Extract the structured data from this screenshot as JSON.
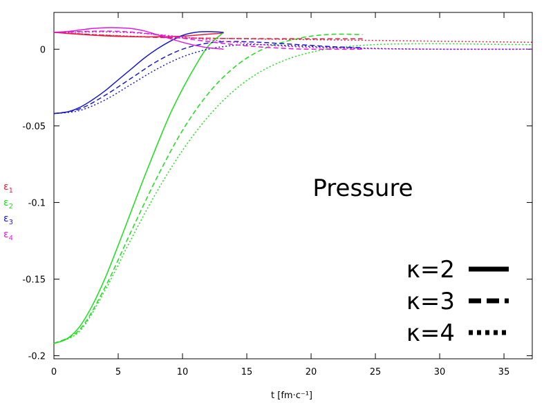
{
  "chart_data": {
    "type": "line",
    "title": "Pressure",
    "xlabel": "t [fm·c⁻¹]",
    "ylabel_entries": [
      {
        "text": "ε",
        "sub": "1",
        "color": "#e8183c"
      },
      {
        "text": "ε",
        "sub": "2",
        "color": "#18e018"
      },
      {
        "text": "ε",
        "sub": "3",
        "color": "#1818d0"
      },
      {
        "text": "ε",
        "sub": "4",
        "color": "#e018e0"
      }
    ],
    "xlim": [
      0,
      37.2
    ],
    "ylim": [
      -0.202,
      0.024
    ],
    "xticks": [
      0,
      5,
      10,
      15,
      20,
      25,
      30,
      35
    ],
    "yticks": [
      0,
      -0.05,
      -0.1,
      -0.15,
      -0.2
    ],
    "ytick_labels": [
      "0",
      "-0.05",
      "-0.1",
      "-0.15",
      "-0.2"
    ],
    "grid": false,
    "legend": {
      "position": "bottom-right",
      "entries": [
        {
          "label": "κ=2",
          "style": "solid"
        },
        {
          "label": "κ=3",
          "style": "dashed"
        },
        {
          "label": "κ=4",
          "style": "dotted"
        }
      ]
    },
    "series": [
      {
        "component": "ε1",
        "kappa": 2,
        "style": "solid",
        "color": "#e8183c",
        "x": [
          0,
          2,
          4,
          6,
          8,
          10,
          12,
          13.2
        ],
        "y": [
          0.011,
          0.0097,
          0.0087,
          0.0082,
          0.0081,
          0.0085,
          0.0098,
          0.0105
        ]
      },
      {
        "component": "ε1",
        "kappa": 3,
        "style": "dashed",
        "color": "#e8183c",
        "x": [
          0,
          3,
          6,
          9,
          12,
          16,
          20,
          24
        ],
        "y": [
          0.011,
          0.0095,
          0.0083,
          0.0075,
          0.0071,
          0.0069,
          0.0068,
          0.0068
        ]
      },
      {
        "component": "ε1",
        "kappa": 4,
        "style": "dotted",
        "color": "#e8183c",
        "x": [
          0,
          3,
          6,
          10,
          15,
          20,
          25,
          30,
          37.2
        ],
        "y": [
          0.011,
          0.0096,
          0.0085,
          0.0075,
          0.0068,
          0.0062,
          0.0057,
          0.0052,
          0.0045
        ]
      },
      {
        "component": "ε2",
        "kappa": 2,
        "style": "solid",
        "color": "#18e018",
        "x": [
          0,
          1,
          2,
          3,
          4,
          5,
          6,
          7,
          8,
          9,
          10,
          11,
          12,
          13.2
        ],
        "y": [
          -0.192,
          -0.189,
          -0.181,
          -0.167,
          -0.149,
          -0.128,
          -0.106,
          -0.084,
          -0.063,
          -0.043,
          -0.026,
          -0.011,
          0.002,
          0.011
        ]
      },
      {
        "component": "ε2",
        "kappa": 3,
        "style": "dashed",
        "color": "#18e018",
        "x": [
          0,
          2,
          4,
          6,
          8,
          10,
          12,
          14,
          16,
          18,
          20,
          22,
          24
        ],
        "y": [
          -0.192,
          -0.183,
          -0.155,
          -0.119,
          -0.084,
          -0.053,
          -0.029,
          -0.012,
          -0.001,
          0.005,
          0.0085,
          0.0098,
          0.0095
        ]
      },
      {
        "component": "ε2",
        "kappa": 4,
        "style": "dotted",
        "color": "#18e018",
        "x": [
          0,
          2,
          4,
          6,
          8,
          10,
          12,
          14,
          16,
          18,
          20,
          22,
          25,
          28,
          31,
          34,
          37.2
        ],
        "y": [
          -0.192,
          -0.184,
          -0.157,
          -0.124,
          -0.093,
          -0.066,
          -0.044,
          -0.027,
          -0.015,
          -0.007,
          -0.002,
          0.001,
          0.003,
          0.0035,
          0.0035,
          0.0032,
          0.003
        ]
      },
      {
        "component": "ε3",
        "kappa": 2,
        "style": "solid",
        "color": "#1818d0",
        "x": [
          0,
          1,
          2,
          3,
          4,
          5,
          6,
          7,
          8,
          9,
          10,
          11,
          12,
          13.2
        ],
        "y": [
          -0.042,
          -0.041,
          -0.038,
          -0.033,
          -0.027,
          -0.02,
          -0.013,
          -0.006,
          0.0,
          0.005,
          0.009,
          0.011,
          0.0115,
          0.011
        ]
      },
      {
        "component": "ε3",
        "kappa": 3,
        "style": "dashed",
        "color": "#1818d0",
        "x": [
          0,
          2,
          4,
          6,
          8,
          10,
          12,
          14,
          16,
          18,
          20,
          22,
          24
        ],
        "y": [
          -0.042,
          -0.039,
          -0.03,
          -0.019,
          -0.008,
          0.0,
          0.004,
          0.005,
          0.0045,
          0.0035,
          0.0025,
          0.0015,
          0.001
        ]
      },
      {
        "component": "ε3",
        "kappa": 4,
        "style": "dotted",
        "color": "#1818d0",
        "x": [
          0,
          2,
          4,
          6,
          8,
          10,
          12,
          14,
          16,
          18,
          21,
          25,
          30,
          37.2
        ],
        "y": [
          -0.042,
          -0.04,
          -0.033,
          -0.023,
          -0.013,
          -0.005,
          0.0,
          0.0025,
          0.003,
          0.0025,
          0.0015,
          0.0005,
          0.0,
          0.0
        ]
      },
      {
        "component": "ε4",
        "kappa": 2,
        "style": "solid",
        "color": "#e018e0",
        "x": [
          0,
          1,
          2,
          3,
          4,
          5,
          6,
          7,
          8,
          9,
          10,
          11,
          12,
          13.2
        ],
        "y": [
          0.011,
          0.0115,
          0.0125,
          0.0135,
          0.014,
          0.014,
          0.0135,
          0.012,
          0.0095,
          0.007,
          0.0045,
          0.0025,
          0.001,
          0.0
        ]
      },
      {
        "component": "ε4",
        "kappa": 3,
        "style": "dashed",
        "color": "#e018e0",
        "x": [
          0,
          2,
          4,
          6,
          8,
          10,
          12,
          14,
          16,
          18,
          20,
          24
        ],
        "y": [
          0.011,
          0.0115,
          0.0118,
          0.0112,
          0.0095,
          0.0072,
          0.005,
          0.003,
          0.0015,
          0.0005,
          0.0,
          0.0
        ]
      },
      {
        "component": "ε4",
        "kappa": 4,
        "style": "dotted",
        "color": "#e018e0",
        "x": [
          0,
          2,
          4,
          6,
          8,
          10,
          12,
          14,
          17,
          20,
          25,
          30,
          37.2
        ],
        "y": [
          0.011,
          0.0112,
          0.0113,
          0.0108,
          0.0096,
          0.008,
          0.0062,
          0.0045,
          0.0025,
          0.0012,
          0.0003,
          0.0,
          0.0
        ]
      }
    ]
  }
}
